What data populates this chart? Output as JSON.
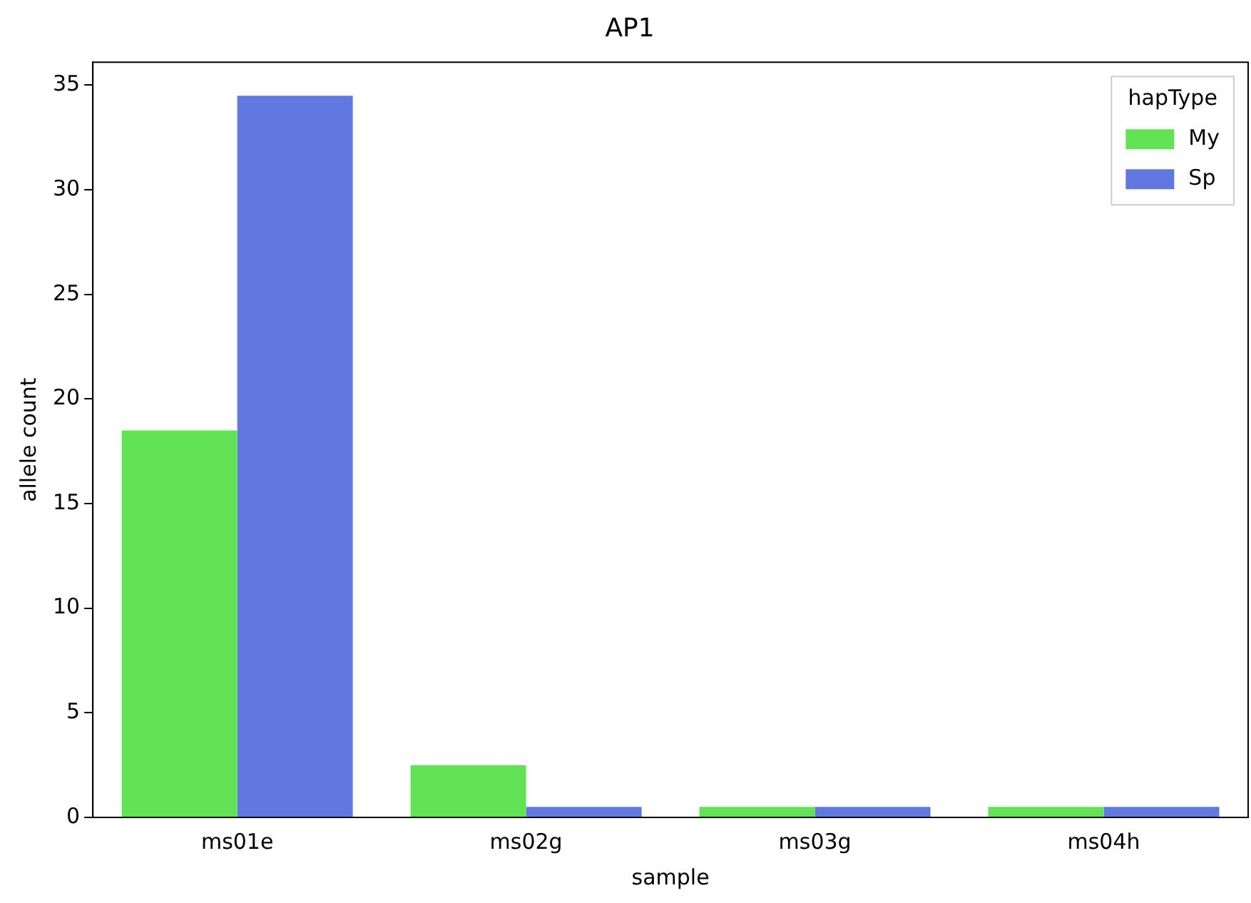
{
  "chart_data": {
    "type": "bar",
    "title": "AP1",
    "xlabel": "sample",
    "ylabel": "allele count",
    "legend_title": "hapType",
    "categories": [
      "ms01e",
      "ms02g",
      "ms03g",
      "ms04h"
    ],
    "series": [
      {
        "name": "My",
        "color": "#62e356",
        "values": [
          18.5,
          2.5,
          0.5,
          0.5
        ]
      },
      {
        "name": "Sp",
        "color": "#6078e0",
        "values": [
          34.5,
          0.5,
          0.5,
          0.5
        ]
      }
    ],
    "ylim": [
      0,
      36.1
    ],
    "yticks": [
      0,
      5,
      10,
      15,
      20,
      25,
      30,
      35
    ],
    "grid": false,
    "legend": "top right"
  }
}
